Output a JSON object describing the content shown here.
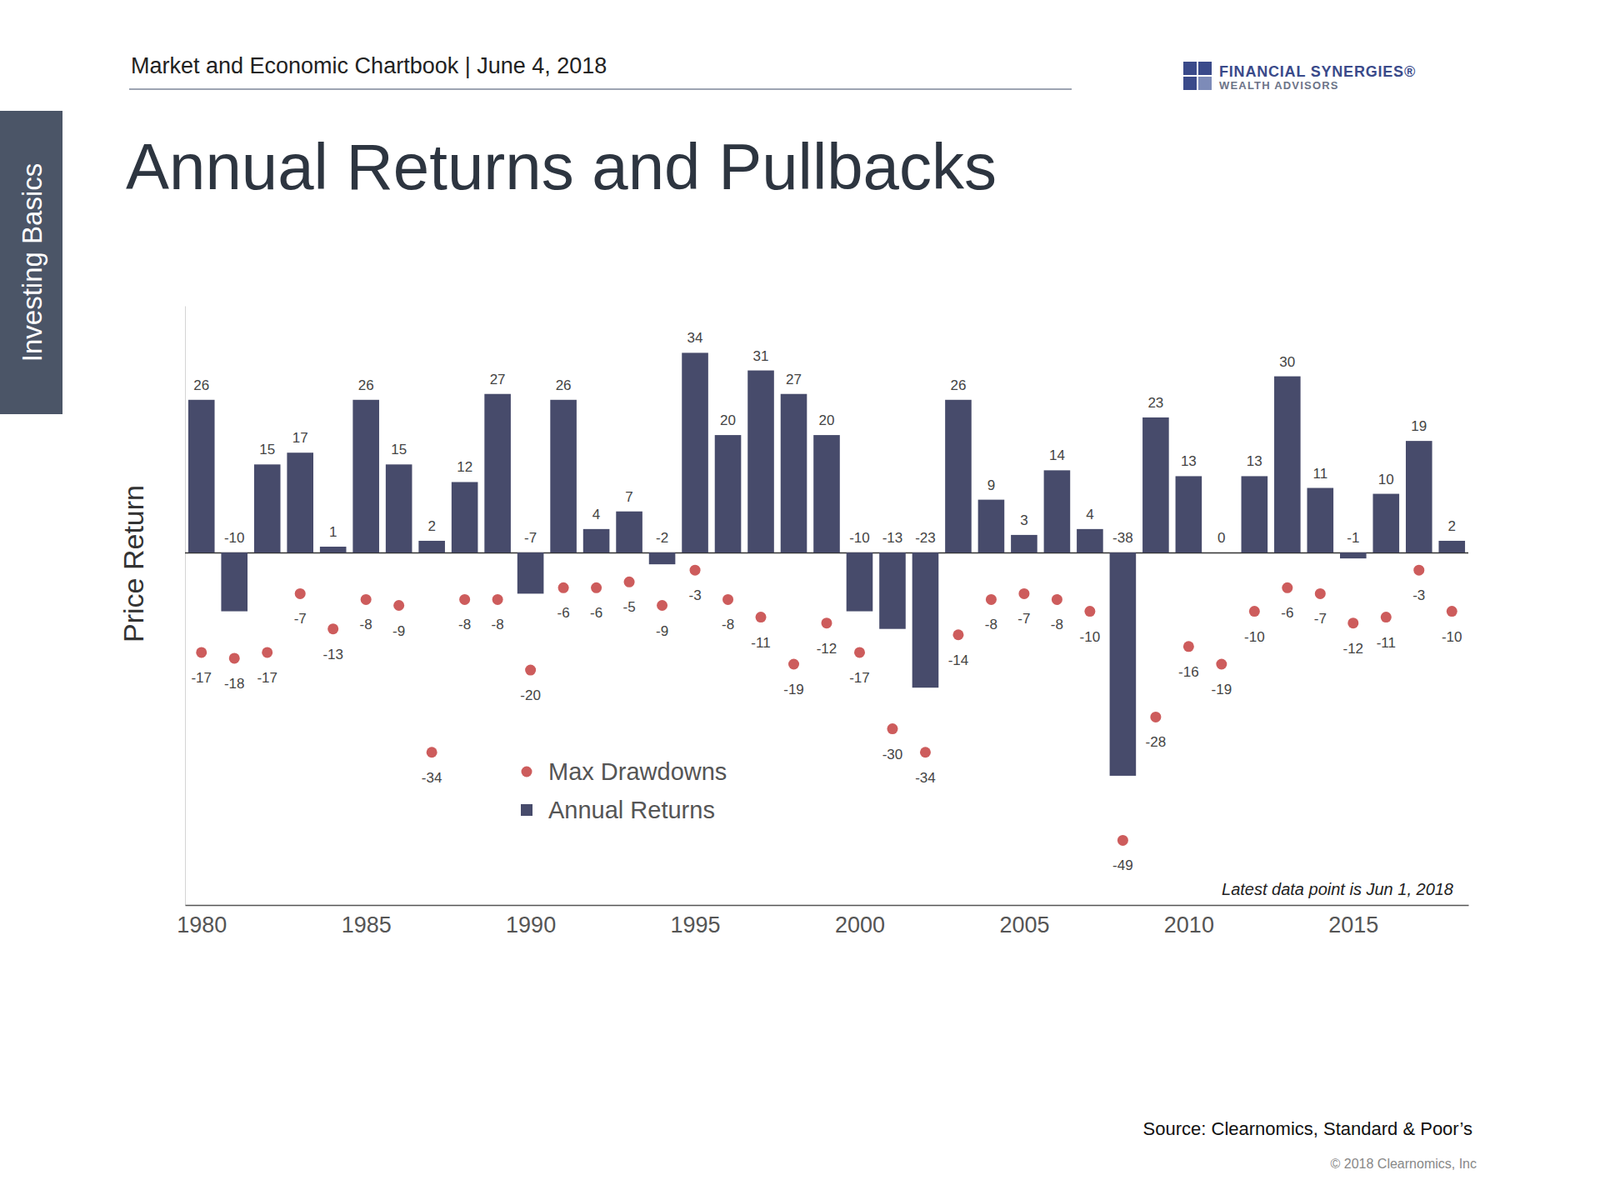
{
  "page": {
    "header": "Market and Economic Chartbook | June 4, 2018",
    "logo_name": "FINANCIAL SYNERGIES®",
    "logo_sub": "WEALTH ADVISORS",
    "tab": "Investing Basics",
    "source": "Source: Clearnomics, Standard & Poor’s",
    "copyright": "© 2018 Clearnomics, Inc"
  },
  "chart_data": {
    "type": "bar",
    "title": "Annual Returns and Pullbacks",
    "y_label": "Price Return",
    "annotations": [
      "Latest data point is Jun 1, 2018"
    ],
    "x": [
      1980,
      1981,
      1982,
      1983,
      1984,
      1985,
      1986,
      1987,
      1988,
      1989,
      1990,
      1991,
      1992,
      1993,
      1994,
      1995,
      1996,
      1997,
      1998,
      1999,
      2000,
      2001,
      2002,
      2003,
      2004,
      2005,
      2006,
      2007,
      2008,
      2009,
      2010,
      2011,
      2012,
      2013,
      2014,
      2015,
      2016,
      2017,
      2018
    ],
    "series": [
      {
        "name": "Max Drawdowns",
        "type": "scatter",
        "marker": "circle",
        "color": "#cd5c5c",
        "values": [
          -17,
          -18,
          -17,
          -7,
          -13,
          -8,
          -9,
          -34,
          -8,
          -8,
          -20,
          -6,
          -6,
          -5,
          -9,
          -3,
          -8,
          -11,
          -19,
          -12,
          -17,
          -30,
          -34,
          -14,
          -8,
          -7,
          -8,
          -10,
          -49,
          -28,
          -16,
          -19,
          -10,
          -6,
          -7,
          -12,
          -11,
          -3,
          -10
        ]
      },
      {
        "name": "Annual Returns",
        "type": "bar",
        "color": "#474b6b",
        "values": [
          26,
          -10,
          15,
          17,
          1,
          26,
          15,
          2,
          12,
          27,
          -7,
          26,
          4,
          7,
          -2,
          34,
          20,
          31,
          27,
          20,
          -10,
          -13,
          -23,
          26,
          9,
          3,
          14,
          4,
          -38,
          23,
          13,
          0,
          13,
          30,
          11,
          -1,
          10,
          19,
          2
        ]
      }
    ],
    "xlim": [
      1979.5,
      2018.5
    ],
    "xticks": [
      1980,
      1985,
      1990,
      1995,
      2000,
      2005,
      2010,
      2015
    ],
    "ylim": [
      -60,
      42
    ],
    "yticks": [
      0
    ],
    "tick_labels": "x",
    "data_labels": true,
    "legend": "lower-left",
    "grid": false
  }
}
